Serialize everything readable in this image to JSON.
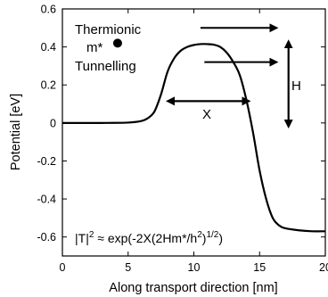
{
  "chart_data": {
    "type": "line",
    "title": "",
    "xlabel": "Along transport direction [nm]",
    "ylabel": "Potential [eV]",
    "xlim": [
      0,
      20
    ],
    "ylim": [
      -0.7,
      0.6
    ],
    "x_ticks": [
      0,
      5,
      10,
      15,
      20
    ],
    "x_tick_labels": [
      "0",
      "5",
      "10",
      "15",
      "20"
    ],
    "y_ticks": [
      -0.6,
      -0.4,
      -0.2,
      0,
      0.2,
      0.4,
      0.6
    ],
    "y_tick_labels": [
      "-0.6",
      "-0.4",
      "-0.2",
      "0",
      "0.2",
      "0.4",
      "0.6"
    ],
    "grid": false,
    "legend": "none",
    "series": [
      {
        "line_color": "#000000",
        "x": [
          0,
          3,
          5,
          6,
          6.5,
          7,
          7.5,
          8,
          8.5,
          9,
          9.5,
          10,
          10.5,
          11,
          11.5,
          12,
          12.5,
          13,
          13.5,
          14,
          14.5,
          15,
          15.5,
          16,
          16.5,
          17,
          18,
          19,
          20
        ],
        "y": [
          0,
          0,
          0.002,
          0.01,
          0.025,
          0.06,
          0.15,
          0.27,
          0.34,
          0.38,
          0.4,
          0.41,
          0.415,
          0.415,
          0.412,
          0.4,
          0.37,
          0.32,
          0.25,
          0.12,
          -0.05,
          -0.25,
          -0.4,
          -0.5,
          -0.54,
          -0.555,
          -0.565,
          -0.57,
          -0.57
        ]
      }
    ],
    "annotations": {
      "thermionic_label": "Thermionic",
      "mass_label": "m*",
      "tunnelling_label": "Tunnelling",
      "x_label": "X",
      "h_label": "H",
      "formula_lhs": "|T|",
      "formula_sup1": "2",
      "formula_mid": " ≈ exp(-2X(2Hm*/h",
      "formula_sup2": "2",
      "formula_close": ")",
      "formula_sup3": "1/2",
      "formula_end": ")"
    },
    "arrows": {
      "thermionic": {
        "x_from": 10.5,
        "x_to": 16.3,
        "y": 0.5
      },
      "tunnelling": {
        "x_from": 10.8,
        "x_to": 16.3,
        "y": 0.32
      },
      "width_x": {
        "x_from": 8.0,
        "x_to": 14.2,
        "y": 0.115
      },
      "height_h": {
        "x": 17.2,
        "y_from": 0.43,
        "y_to": -0.02
      }
    },
    "dot": {
      "x": 4.2,
      "y": 0.42
    }
  }
}
